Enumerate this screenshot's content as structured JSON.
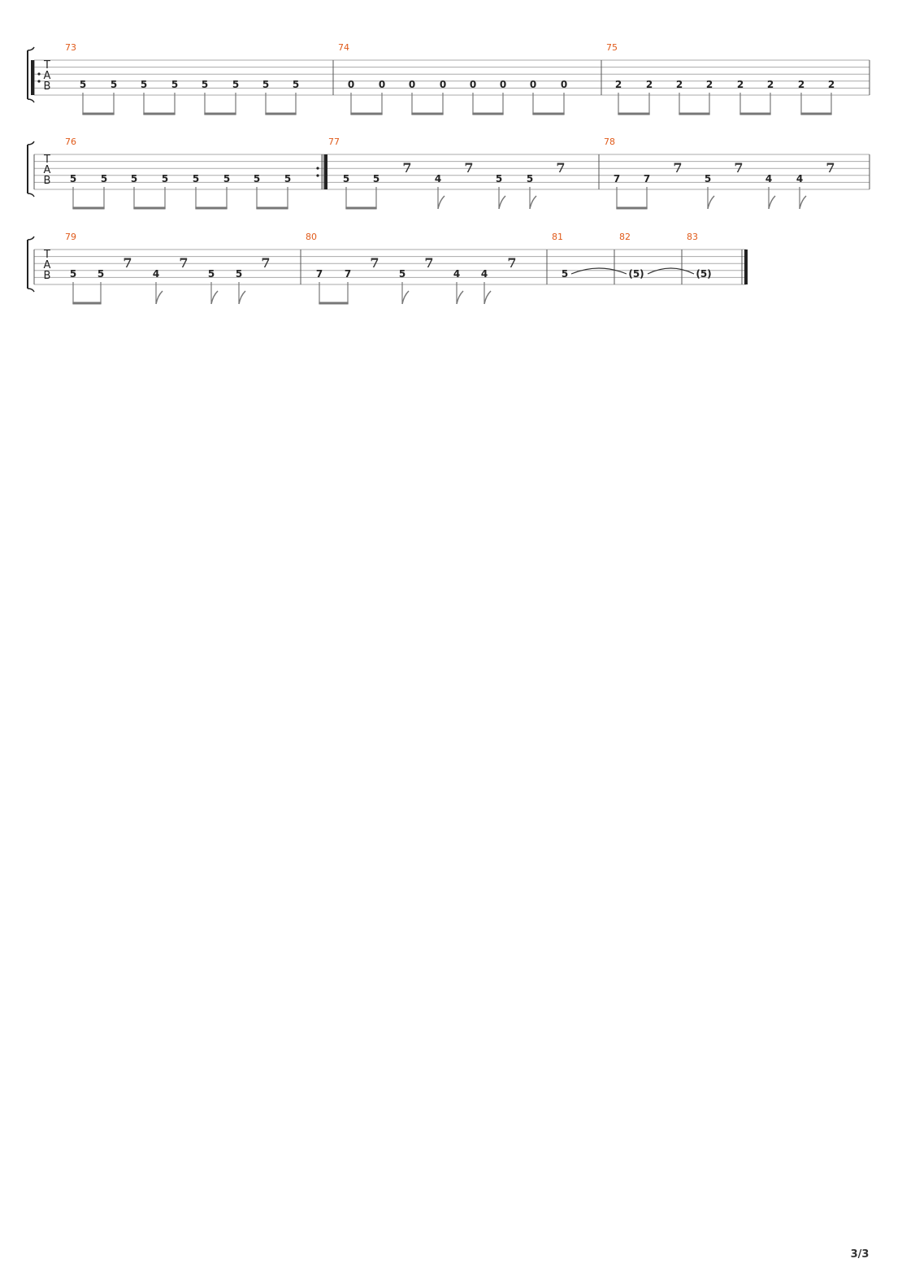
{
  "clef": [
    "T",
    "A",
    "B"
  ],
  "page_number": "3/3",
  "colors": {
    "measure_number": "#e05a1a",
    "staff": "#aaaaaa",
    "stem": "#777777"
  },
  "systems": [
    {
      "measures": [
        {
          "number": "73",
          "events": [
            {
              "type": "note",
              "fret": "5"
            },
            {
              "type": "note",
              "fret": "5"
            },
            {
              "type": "note",
              "fret": "5"
            },
            {
              "type": "note",
              "fret": "5"
            },
            {
              "type": "note",
              "fret": "5"
            },
            {
              "type": "note",
              "fret": "5"
            },
            {
              "type": "note",
              "fret": "5"
            },
            {
              "type": "note",
              "fret": "5"
            }
          ]
        },
        {
          "number": "74",
          "events": [
            {
              "type": "note",
              "fret": "0"
            },
            {
              "type": "note",
              "fret": "0"
            },
            {
              "type": "note",
              "fret": "0"
            },
            {
              "type": "note",
              "fret": "0"
            },
            {
              "type": "note",
              "fret": "0"
            },
            {
              "type": "note",
              "fret": "0"
            },
            {
              "type": "note",
              "fret": "0"
            },
            {
              "type": "note",
              "fret": "0"
            }
          ]
        },
        {
          "number": "75",
          "events": [
            {
              "type": "note",
              "fret": "2"
            },
            {
              "type": "note",
              "fret": "2"
            },
            {
              "type": "note",
              "fret": "2"
            },
            {
              "type": "note",
              "fret": "2"
            },
            {
              "type": "note",
              "fret": "2"
            },
            {
              "type": "note",
              "fret": "2"
            },
            {
              "type": "note",
              "fret": "2"
            },
            {
              "type": "note",
              "fret": "2"
            }
          ]
        }
      ]
    },
    {
      "measures": [
        {
          "number": "76",
          "events": [
            {
              "type": "note",
              "fret": "5"
            },
            {
              "type": "note",
              "fret": "5"
            },
            {
              "type": "note",
              "fret": "5"
            },
            {
              "type": "note",
              "fret": "5"
            },
            {
              "type": "note",
              "fret": "5"
            },
            {
              "type": "note",
              "fret": "5"
            },
            {
              "type": "note",
              "fret": "5"
            },
            {
              "type": "note",
              "fret": "5"
            }
          ]
        },
        {
          "number": "77",
          "events": [
            {
              "type": "note",
              "fret": "5"
            },
            {
              "type": "note",
              "fret": "5"
            },
            {
              "type": "rest"
            },
            {
              "type": "note",
              "fret": "4"
            },
            {
              "type": "rest"
            },
            {
              "type": "note",
              "fret": "5"
            },
            {
              "type": "note",
              "fret": "5"
            },
            {
              "type": "rest"
            }
          ]
        },
        {
          "number": "78",
          "events": [
            {
              "type": "note",
              "fret": "7"
            },
            {
              "type": "note",
              "fret": "7"
            },
            {
              "type": "rest"
            },
            {
              "type": "note",
              "fret": "5"
            },
            {
              "type": "rest"
            },
            {
              "type": "note",
              "fret": "4"
            },
            {
              "type": "note",
              "fret": "4"
            },
            {
              "type": "rest"
            }
          ]
        }
      ]
    },
    {
      "measures": [
        {
          "number": "79",
          "events": [
            {
              "type": "note",
              "fret": "5"
            },
            {
              "type": "note",
              "fret": "5"
            },
            {
              "type": "rest"
            },
            {
              "type": "note",
              "fret": "4"
            },
            {
              "type": "rest"
            },
            {
              "type": "note",
              "fret": "5"
            },
            {
              "type": "note",
              "fret": "5"
            },
            {
              "type": "rest"
            }
          ]
        },
        {
          "number": "80",
          "events": [
            {
              "type": "note",
              "fret": "7"
            },
            {
              "type": "note",
              "fret": "7"
            },
            {
              "type": "rest"
            },
            {
              "type": "note",
              "fret": "5"
            },
            {
              "type": "rest"
            },
            {
              "type": "note",
              "fret": "4"
            },
            {
              "type": "note",
              "fret": "4"
            },
            {
              "type": "rest"
            }
          ]
        },
        {
          "number": "81",
          "events": [
            {
              "type": "whole",
              "fret": "5",
              "tie_out": true
            }
          ]
        },
        {
          "number": "82",
          "events": [
            {
              "type": "whole",
              "fret": "(5)",
              "tie_out": true
            }
          ]
        },
        {
          "number": "83",
          "events": [
            {
              "type": "whole",
              "fret": "(5)"
            }
          ]
        }
      ]
    }
  ]
}
